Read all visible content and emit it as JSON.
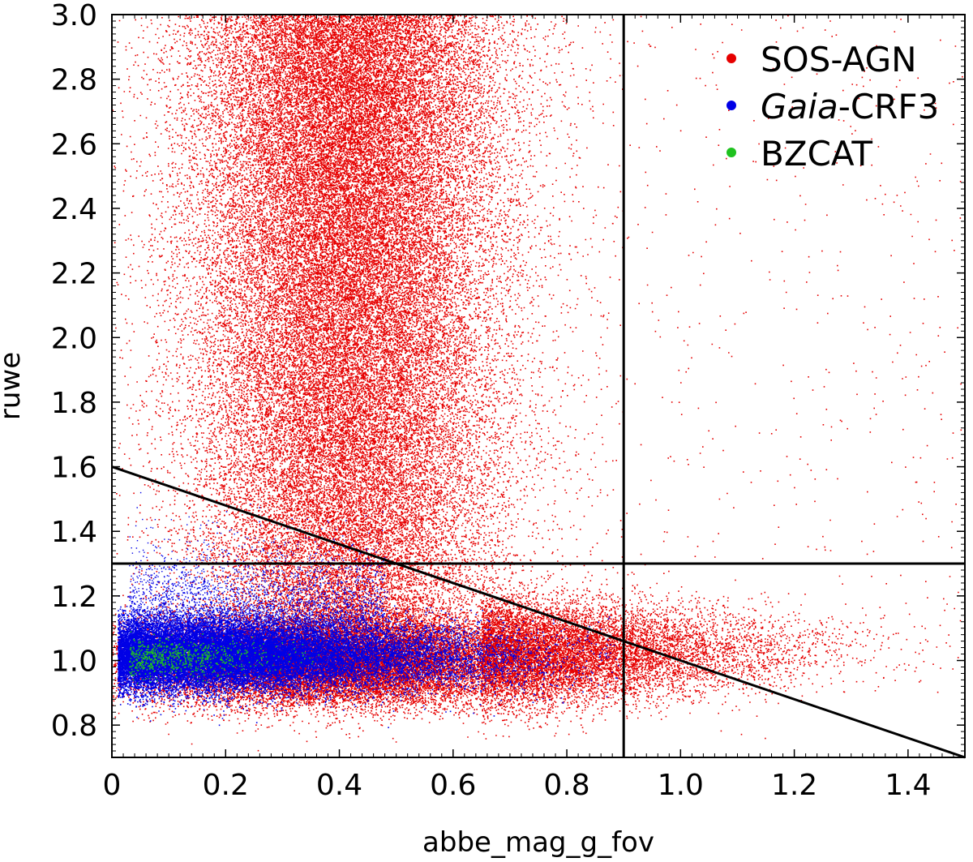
{
  "chart_data": {
    "type": "scatter",
    "xlabel": "abbe_mag_g_fov",
    "ylabel": "ruwe",
    "xlim": [
      0,
      1.5
    ],
    "ylim": [
      0.7,
      3.0
    ],
    "x_ticks": [
      "0",
      "0.2",
      "0.4",
      "0.6",
      "0.8",
      "1.0",
      "1.2",
      "1.4"
    ],
    "y_ticks": [
      "0.8",
      "1.0",
      "1.2",
      "1.4",
      "1.6",
      "1.8",
      "2.0",
      "2.2",
      "2.4",
      "2.6",
      "2.8",
      "3.0"
    ],
    "legend_position": "top-right",
    "series": [
      {
        "name": "SOS-AGN",
        "color": "#e60000",
        "description_ranges": {
          "core_x": [
            0.12,
            0.68
          ],
          "core_y": [
            0.85,
            3.0
          ],
          "tail_x": [
            0.68,
            1.45
          ],
          "tail_y": [
            0.88,
            1.35
          ]
        }
      },
      {
        "name": "Gaia-CRF3",
        "name_italic": "Gaia",
        "name_rest": "-CRF3",
        "color": "#0000e6",
        "description_ranges": {
          "core_x": [
            0.01,
            0.85
          ],
          "core_y": [
            0.88,
            1.2
          ]
        }
      },
      {
        "name": "BZCAT",
        "color": "#1fc21f",
        "description_ranges": {
          "core_x": [
            0.03,
            0.4
          ],
          "core_y": [
            0.97,
            1.05
          ]
        }
      }
    ],
    "reference_lines": [
      {
        "type": "vertical",
        "x": 0.9
      },
      {
        "type": "horizontal",
        "y": 1.3
      },
      {
        "type": "line",
        "x1": 0,
        "y1": 1.6,
        "x2": 1.5,
        "y2": 0.7
      }
    ]
  }
}
